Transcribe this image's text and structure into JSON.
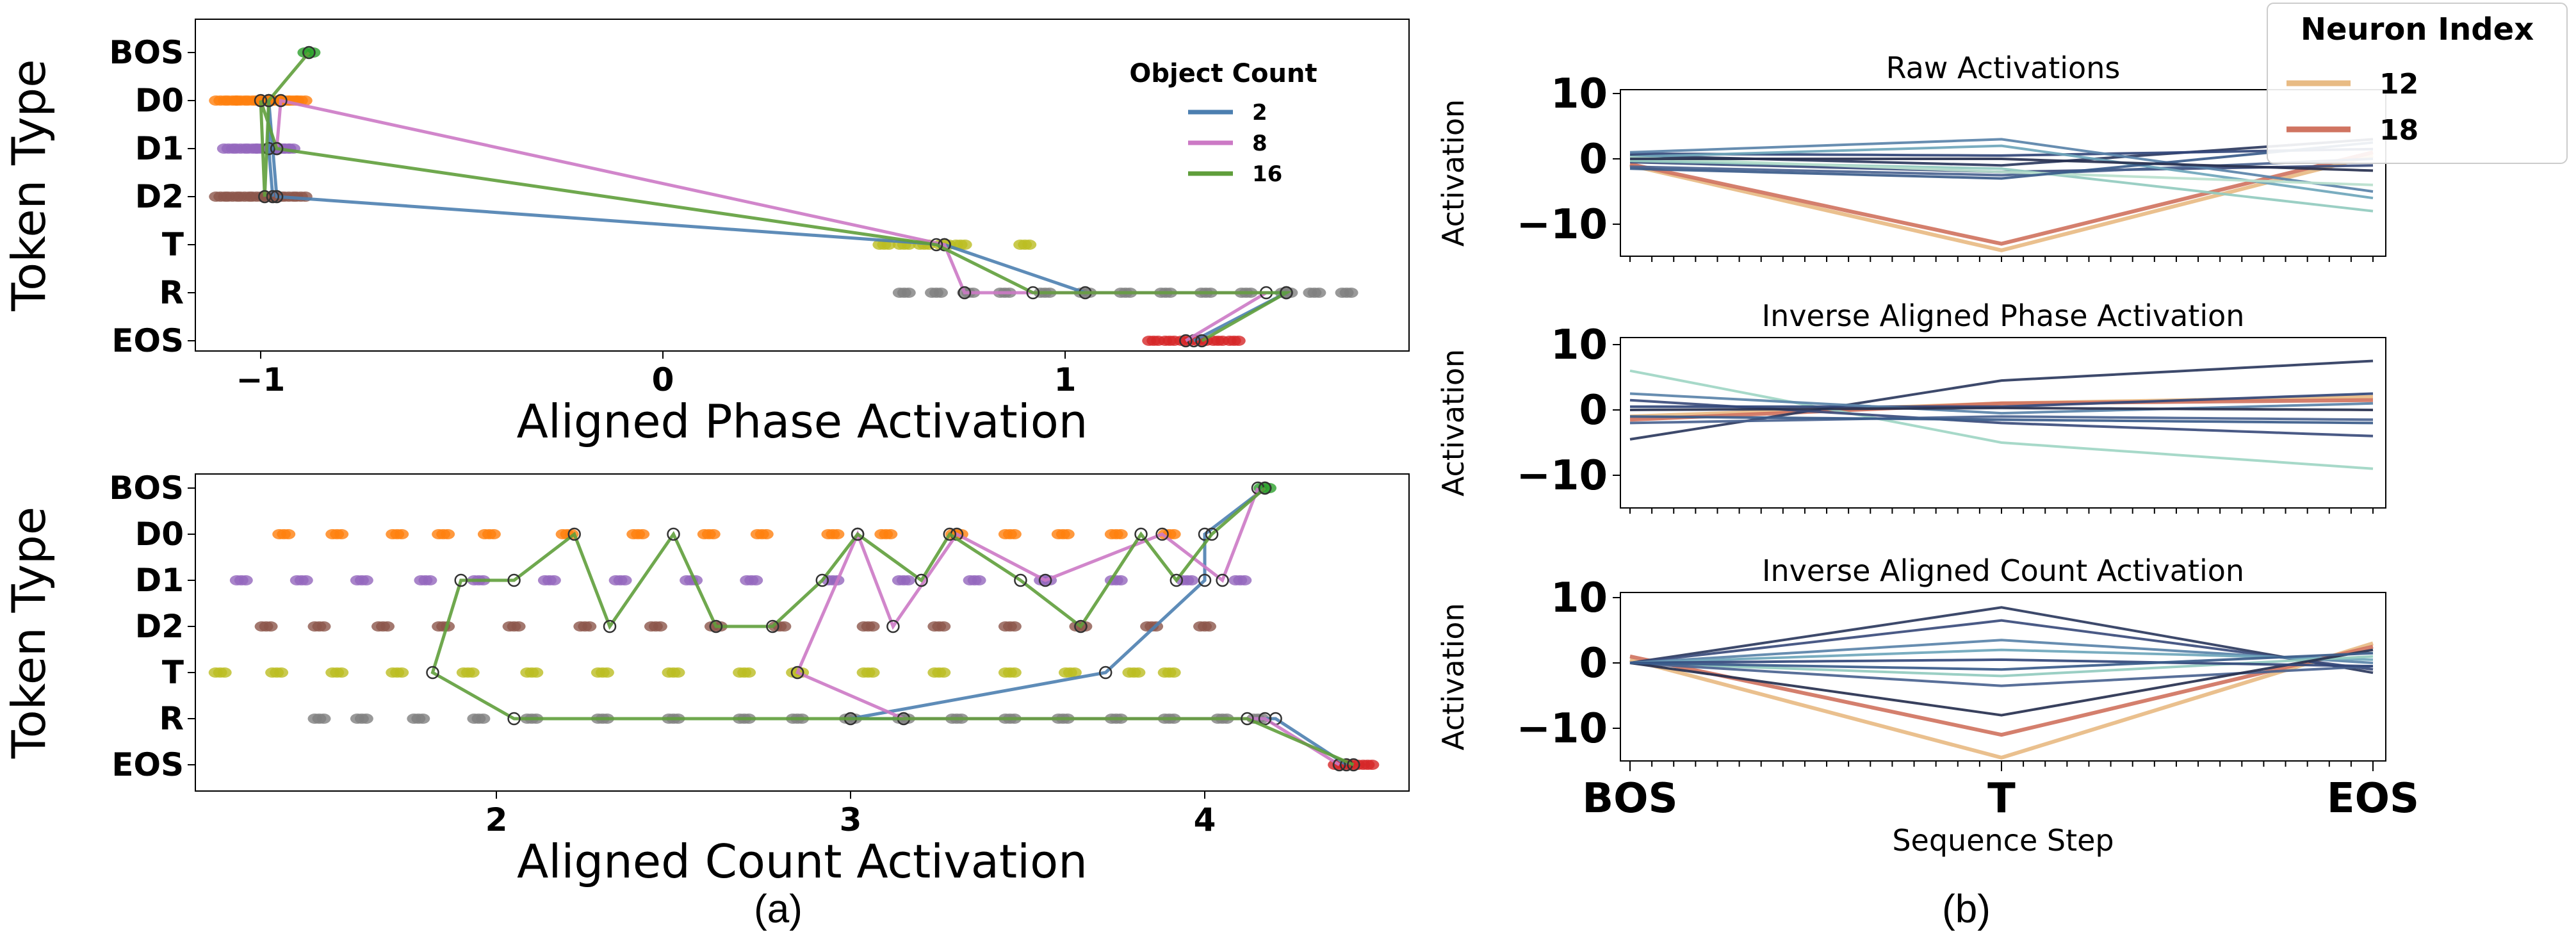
{
  "chart_data": [
    {
      "id": "a_top",
      "type": "scatter",
      "xlabel": "Aligned Phase Activation",
      "ylabel": "Token Type",
      "x_ticks": [
        -1,
        0,
        1
      ],
      "x_tick_labels": [
        "−1",
        "0",
        "1"
      ],
      "xlim": [
        -1.25,
        1.85
      ],
      "categories": [
        "BOS",
        "D0",
        "D1",
        "D2",
        "T",
        "R",
        "EOS"
      ],
      "legend": {
        "title": "Object Count",
        "placement": "top-right",
        "entries": [
          "2",
          "8",
          "16"
        ]
      },
      "category_colors": {
        "BOS": "#2ca02c",
        "D0": "#ff7f0e",
        "D1": "#9467bd",
        "D2": "#8c564b",
        "T": "#bcbd22",
        "R": "#7f7f7f",
        "EOS": "#d62728"
      },
      "point_clusters": [
        {
          "category": "BOS",
          "x": [
            -0.88
          ]
        },
        {
          "category": "D0",
          "x": [
            -1.1,
            -1.07,
            -1.05,
            -1.02,
            -1.0,
            -0.98,
            -0.96,
            -0.94,
            -0.92,
            -0.9
          ]
        },
        {
          "category": "D1",
          "x": [
            -1.08,
            -1.05,
            -1.02,
            -1.0,
            -0.98,
            -0.96,
            -0.94,
            -0.93
          ]
        },
        {
          "category": "D2",
          "x": [
            -1.1,
            -1.07,
            -1.04,
            -1.01,
            -0.98,
            -0.96,
            -0.93,
            -0.9
          ]
        },
        {
          "category": "T",
          "x": [
            0.55,
            0.6,
            0.65,
            0.7,
            0.74,
            0.9
          ]
        },
        {
          "category": "R",
          "x": [
            0.6,
            0.68,
            0.76,
            0.85,
            0.95,
            1.05,
            1.15,
            1.25,
            1.35,
            1.45,
            1.55,
            1.62,
            1.7
          ]
        },
        {
          "category": "EOS",
          "x": [
            1.22,
            1.26,
            1.3,
            1.34,
            1.38,
            1.42
          ]
        }
      ],
      "series": [
        {
          "name": "2",
          "color": "#4c7fb0",
          "points": [
            [
              "D2",
              -0.97
            ],
            [
              "D1",
              -0.98
            ],
            [
              "D0",
              -0.98
            ],
            [
              "D2",
              -0.96
            ],
            [
              "T",
              0.7
            ],
            [
              "R",
              1.05
            ],
            [
              "R",
              1.55
            ],
            [
              "EOS",
              1.32
            ]
          ]
        },
        {
          "name": "8",
          "color": "#cc79c5",
          "points": [
            [
              "D1",
              -0.96
            ],
            [
              "D0",
              -0.95
            ],
            [
              "T",
              0.7
            ],
            [
              "R",
              0.75
            ],
            [
              "R",
              1.5
            ],
            [
              "EOS",
              1.3
            ]
          ]
        },
        {
          "name": "16",
          "color": "#5f9e3b",
          "points": [
            [
              "BOS",
              -0.88
            ],
            [
              "D0",
              -0.98
            ],
            [
              "D2",
              -0.99
            ],
            [
              "D0",
              -1.0
            ],
            [
              "D1",
              -0.96
            ],
            [
              "T",
              0.68
            ],
            [
              "R",
              0.92
            ],
            [
              "R",
              1.55
            ],
            [
              "EOS",
              1.34
            ]
          ]
        }
      ]
    },
    {
      "id": "a_bottom",
      "type": "scatter",
      "xlabel": "Aligned Count Activation",
      "ylabel": "Token Type",
      "x_ticks": [
        2,
        3,
        4
      ],
      "x_tick_labels": [
        "2",
        "3",
        "4"
      ],
      "xlim": [
        1.2,
        4.55
      ],
      "categories": [
        "BOS",
        "D0",
        "D1",
        "D2",
        "T",
        "R",
        "EOS"
      ],
      "point_clusters": [
        {
          "category": "BOS",
          "x": [
            4.17
          ]
        },
        {
          "category": "D0",
          "x": [
            1.4,
            1.55,
            1.72,
            1.85,
            1.98,
            2.2,
            2.4,
            2.6,
            2.75,
            2.95,
            3.1,
            3.3,
            3.45,
            3.6,
            3.75,
            3.9
          ]
        },
        {
          "category": "D1",
          "x": [
            1.28,
            1.45,
            1.62,
            1.8,
            1.95,
            2.15,
            2.35,
            2.55,
            2.72,
            2.95,
            3.15,
            3.35,
            3.55,
            3.75,
            3.95,
            4.1
          ]
        },
        {
          "category": "D2",
          "x": [
            1.35,
            1.5,
            1.68,
            1.85,
            2.05,
            2.25,
            2.45,
            2.62,
            2.8,
            3.05,
            3.25,
            3.45,
            3.65,
            3.85,
            4.0
          ]
        },
        {
          "category": "T",
          "x": [
            1.22,
            1.38,
            1.55,
            1.72,
            1.92,
            2.1,
            2.3,
            2.5,
            2.7,
            2.85,
            3.05,
            3.25,
            3.45,
            3.62,
            3.8,
            3.9
          ]
        },
        {
          "category": "R",
          "x": [
            1.5,
            1.62,
            1.78,
            1.95,
            2.1,
            2.3,
            2.5,
            2.7,
            2.85,
            3.0,
            3.15,
            3.3,
            3.45,
            3.6,
            3.75,
            3.9,
            4.05,
            4.15
          ]
        },
        {
          "category": "EOS",
          "x": [
            4.38,
            4.42,
            4.46
          ]
        }
      ],
      "series": [
        {
          "name": "2",
          "color": "#4c7fb0",
          "points": [
            [
              "EOS",
              4.4
            ],
            [
              "R",
              4.2
            ],
            [
              "R",
              3.0
            ],
            [
              "T",
              3.72
            ],
            [
              "D1",
              4.0
            ],
            [
              "D0",
              4.0
            ],
            [
              "BOS",
              4.17
            ]
          ]
        },
        {
          "name": "8",
          "color": "#cc79c5",
          "points": [
            [
              "EOS",
              4.38
            ],
            [
              "R",
              4.17
            ],
            [
              "R",
              3.15
            ],
            [
              "T",
              2.85
            ],
            [
              "D0",
              3.02
            ],
            [
              "D2",
              3.12
            ],
            [
              "D0",
              3.3
            ],
            [
              "D1",
              3.55
            ],
            [
              "D0",
              3.88
            ],
            [
              "D1",
              4.05
            ],
            [
              "BOS",
              4.15
            ]
          ]
        },
        {
          "name": "16",
          "color": "#5f9e3b",
          "points": [
            [
              "EOS",
              4.42
            ],
            [
              "R",
              4.12
            ],
            [
              "R",
              2.05
            ],
            [
              "T",
              1.82
            ],
            [
              "D1",
              1.9
            ],
            [
              "D1",
              2.05
            ],
            [
              "D0",
              2.22
            ],
            [
              "D2",
              2.32
            ],
            [
              "D0",
              2.5
            ],
            [
              "D2",
              2.62
            ],
            [
              "D2",
              2.78
            ],
            [
              "D1",
              2.92
            ],
            [
              "D0",
              3.02
            ],
            [
              "D1",
              3.2
            ],
            [
              "D0",
              3.28
            ],
            [
              "D1",
              3.48
            ],
            [
              "D2",
              3.65
            ],
            [
              "D0",
              3.82
            ],
            [
              "D1",
              3.92
            ],
            [
              "D0",
              4.02
            ],
            [
              "BOS",
              4.17
            ]
          ]
        }
      ]
    },
    {
      "id": "b1",
      "type": "line",
      "title": "Raw Activations",
      "ylabel": "Activation",
      "y_ticks": [
        -10,
        0,
        10
      ],
      "y_tick_labels": [
        "−10",
        "0",
        "10"
      ],
      "ylim": [
        -16,
        12
      ],
      "x_steps": 35,
      "t_index": 17,
      "legend": {
        "title": "Neuron Index",
        "placement": "top-right",
        "entries": [
          {
            "name": "12",
            "color": "#e8bb84"
          },
          {
            "name": "18",
            "color": "#d07461"
          }
        ]
      },
      "series": [
        {
          "name": "12",
          "color": "#e8bb84",
          "values": [
            -1.0,
            -14.0,
            0.5
          ]
        },
        {
          "name": "18",
          "color": "#d07461",
          "values": [
            -0.8,
            -13.0,
            1.0
          ]
        },
        {
          "color": "#2d3a5e",
          "values": [
            0.5,
            -1.0,
            3.0
          ]
        },
        {
          "color": "#3b4c7c",
          "values": [
            -0.5,
            -2.0,
            -1.0
          ]
        },
        {
          "color": "#324679",
          "values": [
            0.8,
            0.5,
            1.5
          ]
        },
        {
          "color": "#4a6390",
          "values": [
            -1.2,
            -2.5,
            0.0
          ]
        },
        {
          "color": "#5a83a9",
          "values": [
            1.0,
            3.0,
            -5.0
          ]
        },
        {
          "color": "#6ea6bb",
          "values": [
            0.3,
            2.0,
            -6.0
          ]
        },
        {
          "color": "#92cbbf",
          "values": [
            -0.3,
            -1.5,
            -8.0
          ]
        },
        {
          "color": "#b9dfcd",
          "values": [
            0.2,
            -2.0,
            -4.0
          ]
        },
        {
          "color": "#3a5b8a",
          "values": [
            -1.5,
            -3.0,
            2.5
          ]
        },
        {
          "color": "#27304f",
          "values": [
            0.0,
            0.0,
            -1.8
          ]
        }
      ]
    },
    {
      "id": "b2",
      "type": "line",
      "title": "Inverse Aligned Phase Activation",
      "ylabel": "Activation",
      "y_ticks": [
        -10,
        0,
        10
      ],
      "y_tick_labels": [
        "−10",
        "0",
        "10"
      ],
      "ylim": [
        -16,
        12
      ],
      "x_steps": 35,
      "t_index": 17,
      "series": [
        {
          "name": "12",
          "color": "#e8bb84",
          "values": [
            -1.0,
            1.0,
            2.0
          ]
        },
        {
          "name": "18",
          "color": "#d07461",
          "values": [
            -1.5,
            1.0,
            1.5
          ]
        },
        {
          "color": "#9fd6c4",
          "values": [
            6.0,
            -5.0,
            -9.0
          ]
        },
        {
          "color": "#2d3a5e",
          "values": [
            -4.5,
            4.5,
            7.5
          ]
        },
        {
          "color": "#3b4c7c",
          "values": [
            1.5,
            -2.0,
            -4.0
          ]
        },
        {
          "color": "#324679",
          "values": [
            0.5,
            0.5,
            2.5
          ]
        },
        {
          "color": "#4a6390",
          "values": [
            -2.0,
            -1.0,
            -1.5
          ]
        },
        {
          "color": "#5a83a9",
          "values": [
            2.5,
            -0.5,
            1.0
          ]
        },
        {
          "color": "#27304f",
          "values": [
            0.0,
            0.3,
            0.0
          ]
        },
        {
          "color": "#3a5b8a",
          "values": [
            -1.0,
            -1.5,
            -2.0
          ]
        }
      ]
    },
    {
      "id": "b3",
      "type": "line",
      "title": "Inverse Aligned Count Activation",
      "ylabel": "Activation",
      "y_ticks": [
        -10,
        0,
        10
      ],
      "y_tick_labels": [
        "−10",
        "0",
        "10"
      ],
      "ylim": [
        -16,
        12
      ],
      "x_steps": 35,
      "t_index": 17,
      "xlabel": "Sequence Step",
      "x_tick_labels": [
        "BOS",
        "T",
        "EOS"
      ],
      "series": [
        {
          "name": "12",
          "color": "#e8bb84",
          "values": [
            0.5,
            -14.5,
            3.0
          ]
        },
        {
          "name": "18",
          "color": "#d07461",
          "values": [
            1.0,
            -11.0,
            2.5
          ]
        },
        {
          "color": "#2d3a5e",
          "values": [
            0.0,
            8.5,
            -1.5
          ]
        },
        {
          "color": "#3b4c7c",
          "values": [
            0.0,
            6.5,
            -1.0
          ]
        },
        {
          "color": "#5a83a9",
          "values": [
            0.0,
            3.5,
            0.0
          ]
        },
        {
          "color": "#6ea6bb",
          "values": [
            0.0,
            2.0,
            0.5
          ]
        },
        {
          "color": "#92cbbf",
          "values": [
            0.0,
            -2.0,
            1.0
          ]
        },
        {
          "color": "#4a6390",
          "values": [
            0.0,
            -3.5,
            -0.5
          ]
        },
        {
          "color": "#27304f",
          "values": [
            0.0,
            -8.0,
            2.0
          ]
        },
        {
          "color": "#324679",
          "values": [
            0.0,
            0.5,
            -0.5
          ]
        },
        {
          "color": "#3a5b8a",
          "values": [
            0.0,
            -1.0,
            1.5
          ]
        }
      ]
    }
  ],
  "captions": {
    "a": "(a)",
    "b": "(b)"
  }
}
